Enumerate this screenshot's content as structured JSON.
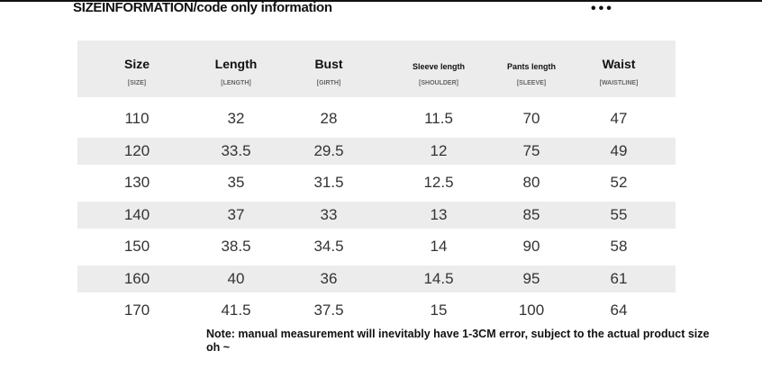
{
  "title": "SIZEINFORMATION/code only information",
  "more_icon": "more-horizontal-icon",
  "more_glyph": "•••",
  "columns": [
    {
      "label": "Size",
      "sub": "[SIZE]"
    },
    {
      "label": "Length",
      "sub": "[LENGTH]"
    },
    {
      "label": "Bust",
      "sub": "[GIRTH]"
    },
    {
      "label": "Sleeve length",
      "sub": "[SHOULDER]"
    },
    {
      "label": "Pants length",
      "sub": "[SLEEVE]"
    },
    {
      "label": "Waist",
      "sub": "[WAISTLINE]"
    }
  ],
  "rows": [
    [
      "110",
      "32",
      "28",
      "11.5",
      "70",
      "47"
    ],
    [
      "120",
      "33.5",
      "29.5",
      "12",
      "75",
      "49"
    ],
    [
      "130",
      "35",
      "31.5",
      "12.5",
      "80",
      "52"
    ],
    [
      "140",
      "37",
      "33",
      "13",
      "85",
      "55"
    ],
    [
      "150",
      "38.5",
      "34.5",
      "14",
      "90",
      "58"
    ],
    [
      "160",
      "40",
      "36",
      "14.5",
      "95",
      "61"
    ],
    [
      "170",
      "41.5",
      "37.5",
      "15",
      "100",
      "64"
    ]
  ],
  "note": "Note: manual measurement will inevitably have 1-3CM error, subject to the actual product size oh ~"
}
